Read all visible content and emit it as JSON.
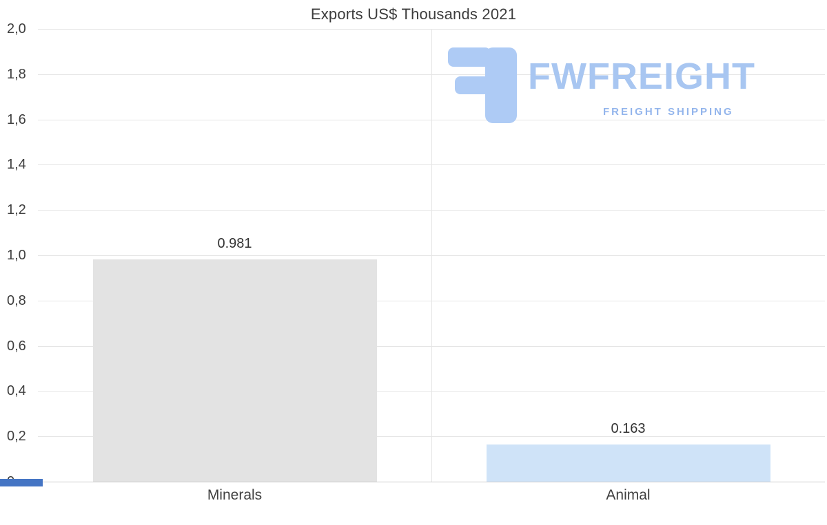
{
  "title": "Exports US$ Thousands 2021",
  "watermark": {
    "brand": "FWFREIGHT",
    "tagline": "FREIGHT SHIPPING"
  },
  "colors": {
    "brand-blue": "#a8c6f1",
    "tagline-blue": "#93b5ec",
    "logo-blue": "#aecbf5",
    "accent-blue": "#4575c4"
  },
  "chart_data": {
    "type": "bar",
    "title": "Exports US$ Thousands 2021",
    "categories": [
      "Minerals",
      "Animal"
    ],
    "values": [
      0.981,
      0.163
    ],
    "value_labels": [
      "0.981",
      "0.163"
    ],
    "bar_colors": [
      "#e3e3e3",
      "#cfe3f8"
    ],
    "xlabel": "",
    "ylabel": "",
    "ylim": [
      0,
      2
    ],
    "yticks": [
      {
        "value": 2.0,
        "label": "2,0"
      },
      {
        "value": 1.8,
        "label": "1,8"
      },
      {
        "value": 1.6,
        "label": "1,6"
      },
      {
        "value": 1.4,
        "label": "1,4"
      },
      {
        "value": 1.2,
        "label": "1,2"
      },
      {
        "value": 1.0,
        "label": "1,0"
      },
      {
        "value": 0.8,
        "label": "0,8"
      },
      {
        "value": 0.6,
        "label": "0,6"
      },
      {
        "value": 0.4,
        "label": "0,4"
      },
      {
        "value": 0.2,
        "label": "0,2"
      },
      {
        "value": 0.0,
        "label": "0"
      }
    ],
    "grid": true,
    "legend": false
  }
}
